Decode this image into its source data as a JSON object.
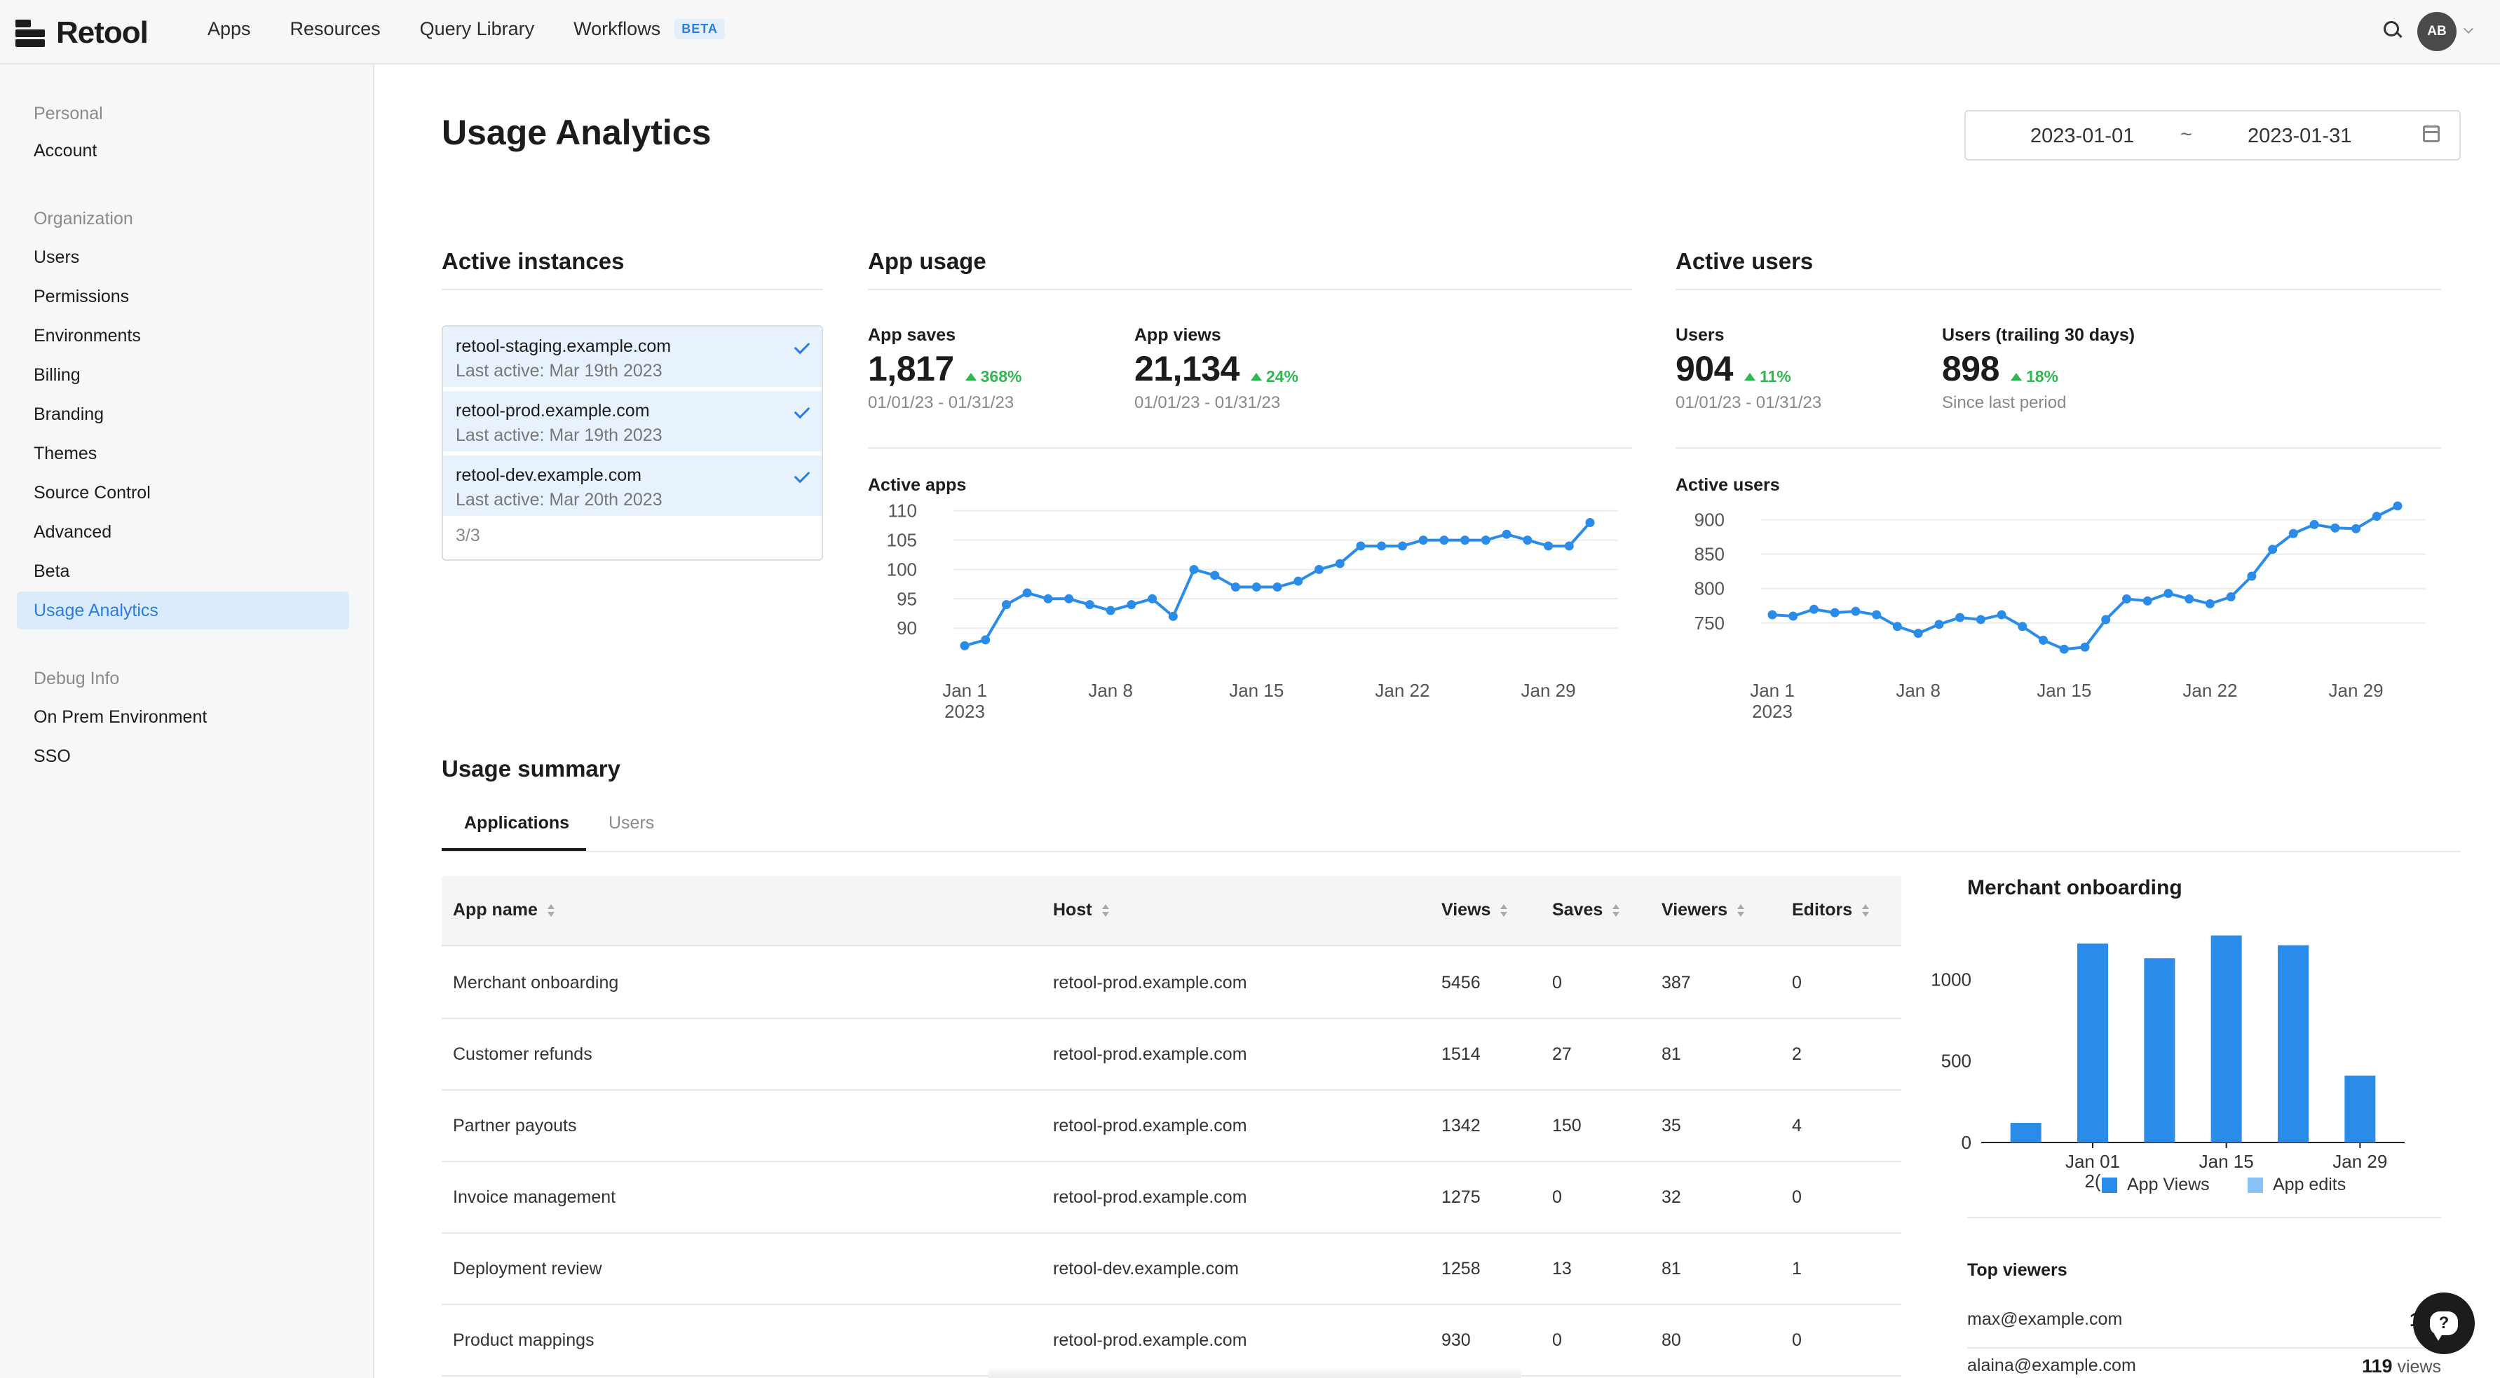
{
  "nav": {
    "logo": "Retool",
    "links": [
      "Apps",
      "Resources",
      "Query Library",
      "Workflows"
    ],
    "workflows_badge": "BETA",
    "avatar_initials": "AB"
  },
  "sidebar": {
    "personal_header": "Personal",
    "personal_items": [
      "Account"
    ],
    "org_header": "Organization",
    "org_items": [
      "Users",
      "Permissions",
      "Environments",
      "Billing",
      "Branding",
      "Themes",
      "Source Control",
      "Advanced",
      "Beta",
      "Usage Analytics"
    ],
    "active_item": "Usage Analytics",
    "debug_header": "Debug Info",
    "debug_items": [
      "On Prem Environment",
      "SSO"
    ]
  },
  "page": {
    "title": "Usage Analytics",
    "date_start": "2023-01-01",
    "date_separator": "~",
    "date_end": "2023-01-31"
  },
  "instances": {
    "title": "Active instances",
    "items": [
      {
        "host": "retool-staging.example.com",
        "last_active": "Last active: Mar 19th 2023",
        "checked": true
      },
      {
        "host": "retool-prod.example.com",
        "last_active": "Last active: Mar 19th 2023",
        "checked": true
      },
      {
        "host": "retool-dev.example.com",
        "last_active": "Last active: Mar 20th 2023",
        "checked": true
      }
    ],
    "count": "3/3"
  },
  "app_usage": {
    "title": "App usage",
    "saves": {
      "label": "App saves",
      "value": "1,817",
      "delta": "368%",
      "period": "01/01/23 - 01/31/23"
    },
    "views": {
      "label": "App views",
      "value": "21,134",
      "delta": "24%",
      "period": "01/01/23 - 01/31/23"
    },
    "chart_label": "Active apps"
  },
  "active_users": {
    "title": "Active users",
    "users": {
      "label": "Users",
      "value": "904",
      "delta": "11%",
      "period": "01/01/23 - 01/31/23"
    },
    "trailing": {
      "label": "Users (trailing 30 days)",
      "value": "898",
      "delta": "18%",
      "period": "Since last period"
    },
    "chart_label": "Active users"
  },
  "usage_summary": {
    "title": "Usage summary",
    "tabs": [
      "Applications",
      "Users"
    ],
    "active_tab": "Applications",
    "columns": [
      "App name",
      "Host",
      "Views",
      "Saves",
      "Viewers",
      "Editors"
    ],
    "rows": [
      [
        "Merchant onboarding",
        "retool-prod.example.com",
        "5456",
        "0",
        "387",
        "0"
      ],
      [
        "Customer refunds",
        "retool-prod.example.com",
        "1514",
        "27",
        "81",
        "2"
      ],
      [
        "Partner payouts",
        "retool-prod.example.com",
        "1342",
        "150",
        "35",
        "4"
      ],
      [
        "Invoice management",
        "retool-prod.example.com",
        "1275",
        "0",
        "32",
        "0"
      ],
      [
        "Deployment review",
        "retool-dev.example.com",
        "1258",
        "13",
        "81",
        "1"
      ],
      [
        "Product mappings",
        "retool-prod.example.com",
        "930",
        "0",
        "80",
        "0"
      ]
    ]
  },
  "detail_panel": {
    "title": "Merchant onboarding",
    "legend": [
      "App Views",
      "App edits"
    ],
    "top_viewers_title": "Top viewers",
    "top_viewers": [
      {
        "email": "max@example.com",
        "count": "124",
        "suffix": ""
      },
      {
        "email": "alaina@example.com",
        "count": "119",
        "suffix": " views"
      }
    ]
  },
  "colors": {
    "accent": "#2a7de1",
    "series_primary": "#2a8ce8",
    "series_secondary": "#89c2f5",
    "positive": "#2fb84f"
  },
  "chart_data": [
    {
      "type": "line",
      "title": "Active apps",
      "x": [
        "2023-01-01",
        "2023-01-02",
        "2023-01-03",
        "2023-01-04",
        "2023-01-05",
        "2023-01-06",
        "2023-01-07",
        "2023-01-08",
        "2023-01-09",
        "2023-01-10",
        "2023-01-11",
        "2023-01-12",
        "2023-01-13",
        "2023-01-14",
        "2023-01-15",
        "2023-01-16",
        "2023-01-17",
        "2023-01-18",
        "2023-01-19",
        "2023-01-20",
        "2023-01-21",
        "2023-01-22",
        "2023-01-23",
        "2023-01-24",
        "2023-01-25",
        "2023-01-26",
        "2023-01-27",
        "2023-01-28",
        "2023-01-29",
        "2023-01-30",
        "2023-01-31"
      ],
      "values": [
        87,
        88,
        94,
        96,
        95,
        95,
        94,
        93,
        94,
        95,
        92,
        100,
        99,
        97,
        97,
        97,
        98,
        100,
        101,
        104,
        104,
        104,
        105,
        105,
        105,
        105,
        106,
        105,
        104,
        104,
        108
      ],
      "x_ticks": [
        "Jan 1",
        "Jan 8",
        "Jan 15",
        "Jan 22",
        "Jan 29"
      ],
      "x_tick_year": "2023",
      "y_ticks": [
        90,
        95,
        100,
        105,
        110
      ],
      "ylim": [
        85,
        112
      ],
      "grid": true
    },
    {
      "type": "line",
      "title": "Active users",
      "x": [
        "2023-01-01",
        "2023-01-02",
        "2023-01-03",
        "2023-01-04",
        "2023-01-05",
        "2023-01-06",
        "2023-01-07",
        "2023-01-08",
        "2023-01-09",
        "2023-01-10",
        "2023-01-11",
        "2023-01-12",
        "2023-01-13",
        "2023-01-14",
        "2023-01-15",
        "2023-01-16",
        "2023-01-17",
        "2023-01-18",
        "2023-01-19",
        "2023-01-20",
        "2023-01-21",
        "2023-01-22",
        "2023-01-23",
        "2023-01-24",
        "2023-01-25",
        "2023-01-26",
        "2023-01-27",
        "2023-01-28",
        "2023-01-29",
        "2023-01-30",
        "2023-01-31"
      ],
      "values": [
        762,
        760,
        770,
        765,
        767,
        762,
        745,
        735,
        748,
        758,
        755,
        762,
        745,
        725,
        712,
        715,
        755,
        785,
        782,
        793,
        785,
        778,
        788,
        818,
        857,
        880,
        893,
        888,
        887,
        905,
        920
      ],
      "x_ticks": [
        "Jan 1",
        "Jan 8",
        "Jan 15",
        "Jan 22",
        "Jan 29"
      ],
      "x_tick_year": "2023",
      "y_ticks": [
        750,
        800,
        850,
        900
      ],
      "ylim": [
        700,
        930
      ],
      "grid": true
    },
    {
      "type": "bar",
      "title": "Merchant onboarding",
      "categories": [
        "Dec 25",
        "Jan 01",
        "Jan 08",
        "Jan 15",
        "Jan 22",
        "Jan 29"
      ],
      "x_ticks": [
        "Jan 01",
        "Jan 15",
        "Jan 29"
      ],
      "x_tick_year_fragment": "2(",
      "series": [
        {
          "name": "App Views",
          "values": [
            120,
            1220,
            1130,
            1270,
            1210,
            410
          ]
        },
        {
          "name": "App edits",
          "values": [
            0,
            0,
            0,
            0,
            0,
            0
          ]
        }
      ],
      "y_ticks": [
        0,
        500,
        1000
      ],
      "ylim": [
        0,
        1350
      ],
      "legend": "bottom"
    }
  ]
}
